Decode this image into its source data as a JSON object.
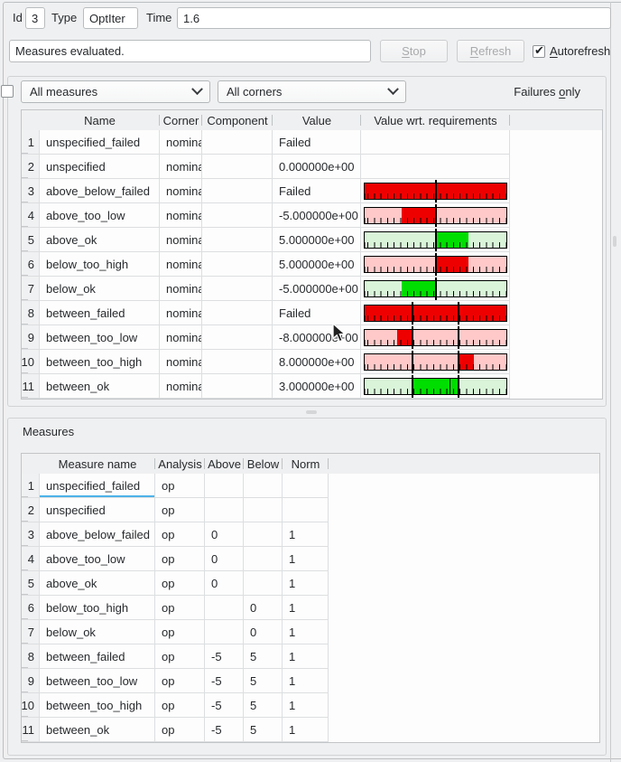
{
  "header": {
    "id_label": "Id",
    "id_value": "3",
    "type_label": "Type",
    "type_value": "OptIter",
    "time_label": "Time",
    "time_value": "1.6",
    "status_value": "Measures evaluated.",
    "stop_button": {
      "text": "Stop",
      "underline": 0,
      "disabled": true
    },
    "refresh_button": {
      "text": "Refresh",
      "underline": 0,
      "disabled": true
    },
    "autorefresh": {
      "text": "Autorefresh",
      "underline": 0,
      "checked": true
    }
  },
  "filters": {
    "measures_combo_value": "All measures",
    "corners_combo_value": "All corners",
    "failures_only": {
      "text": "Failures only",
      "underline": 9,
      "checked": false
    }
  },
  "colors": {
    "fail_red": "#ee0000",
    "fail_pink": "#ffc9c9",
    "ok_green": "#00dd00",
    "ok_pale_green": "#d9f4d9",
    "highlight": "#3daee9"
  },
  "results_table": {
    "columns": [
      "Name",
      "Corner",
      "Component",
      "Value",
      "Value wrt. requirements"
    ],
    "rows": [
      {
        "n": "1",
        "name": "unspecified_failed",
        "corner": "nominal",
        "component": "",
        "value": "Failed",
        "bar": null
      },
      {
        "n": "2",
        "name": "unspecified",
        "corner": "nominal",
        "component": "",
        "value": "0.000000e+00",
        "bar": null
      },
      {
        "n": "3",
        "name": "above_below_failed",
        "corner": "nominal",
        "component": "",
        "value": "Failed",
        "bar": {
          "bg": "#ee0000",
          "segments": [],
          "lines": [
            50
          ]
        }
      },
      {
        "n": "4",
        "name": "above_too_low",
        "corner": "nominal",
        "component": "",
        "value": "-5.000000e+00",
        "bar": {
          "bg": "#ffc9c9",
          "segments": [
            {
              "from": 26,
              "to": 50,
              "color": "#ee0000"
            }
          ],
          "lines": [
            50
          ]
        }
      },
      {
        "n": "5",
        "name": "above_ok",
        "corner": "nominal",
        "component": "",
        "value": "5.000000e+00",
        "bar": {
          "bg": "#d9f4d9",
          "segments": [
            {
              "from": 50,
              "to": 73.5,
              "color": "#00dd00"
            }
          ],
          "lines": [
            50
          ]
        }
      },
      {
        "n": "6",
        "name": "below_too_high",
        "corner": "nominal",
        "component": "",
        "value": "5.000000e+00",
        "bar": {
          "bg": "#ffc9c9",
          "segments": [
            {
              "from": 50,
              "to": 73.5,
              "color": "#ee0000"
            }
          ],
          "lines": [
            50
          ]
        }
      },
      {
        "n": "7",
        "name": "below_ok",
        "corner": "nominal",
        "component": "",
        "value": "-5.000000e+00",
        "bar": {
          "bg": "#d9f4d9",
          "segments": [
            {
              "from": 26,
              "to": 50,
              "color": "#00dd00"
            }
          ],
          "lines": [
            50
          ]
        }
      },
      {
        "n": "8",
        "name": "between_failed",
        "corner": "nominal",
        "component": "",
        "value": "Failed",
        "bar": {
          "bg": "#ee0000",
          "segments": [],
          "lines": [
            33.5,
            66.5
          ]
        }
      },
      {
        "n": "9",
        "name": "between_too_low",
        "corner": "nominal",
        "component": "",
        "value": "-8.000000e+00",
        "bar": {
          "bg": "#ffc9c9",
          "segments": [
            {
              "from": 23,
              "to": 33.5,
              "color": "#ee0000"
            }
          ],
          "lines": [
            33.5,
            66.5
          ]
        }
      },
      {
        "n": "10",
        "name": "between_too_high",
        "corner": "nominal",
        "component": "",
        "value": "8.000000e+00",
        "bar": {
          "bg": "#ffc9c9",
          "segments": [
            {
              "from": 66.5,
              "to": 77,
              "color": "#ee0000"
            }
          ],
          "lines": [
            33.5,
            66.5
          ]
        }
      },
      {
        "n": "11",
        "name": "between_ok",
        "corner": "nominal",
        "component": "",
        "value": "3.000000e+00",
        "bar": {
          "bg": "#d9f4d9",
          "segments": [
            {
              "from": 33.5,
              "to": 66.5,
              "color": "#00dd00"
            }
          ],
          "lines": [
            33.5,
            66.5
          ],
          "marker": 60
        }
      }
    ]
  },
  "measures_panel": {
    "title": "Measures",
    "columns": [
      "Measure name",
      "Analysis",
      "Above",
      "Below",
      "Norm"
    ],
    "rows": [
      {
        "n": "1",
        "name": "unspecified_failed",
        "analysis": "op",
        "above": "",
        "below": "",
        "norm": "",
        "current": true
      },
      {
        "n": "2",
        "name": "unspecified",
        "analysis": "op",
        "above": "",
        "below": "",
        "norm": ""
      },
      {
        "n": "3",
        "name": "above_below_failed",
        "analysis": "op",
        "above": "0",
        "below": "",
        "norm": "1"
      },
      {
        "n": "4",
        "name": "above_too_low",
        "analysis": "op",
        "above": "0",
        "below": "",
        "norm": "1"
      },
      {
        "n": "5",
        "name": "above_ok",
        "analysis": "op",
        "above": "0",
        "below": "",
        "norm": "1"
      },
      {
        "n": "6",
        "name": "below_too_high",
        "analysis": "op",
        "above": "",
        "below": "0",
        "norm": "1"
      },
      {
        "n": "7",
        "name": "below_ok",
        "analysis": "op",
        "above": "",
        "below": "0",
        "norm": "1"
      },
      {
        "n": "8",
        "name": "between_failed",
        "analysis": "op",
        "above": "-5",
        "below": "5",
        "norm": "1"
      },
      {
        "n": "9",
        "name": "between_too_low",
        "analysis": "op",
        "above": "-5",
        "below": "5",
        "norm": "1"
      },
      {
        "n": "10",
        "name": "between_too_high",
        "analysis": "op",
        "above": "-5",
        "below": "5",
        "norm": "1"
      },
      {
        "n": "11",
        "name": "between_ok",
        "analysis": "op",
        "above": "-5",
        "below": "5",
        "norm": "1"
      }
    ]
  }
}
